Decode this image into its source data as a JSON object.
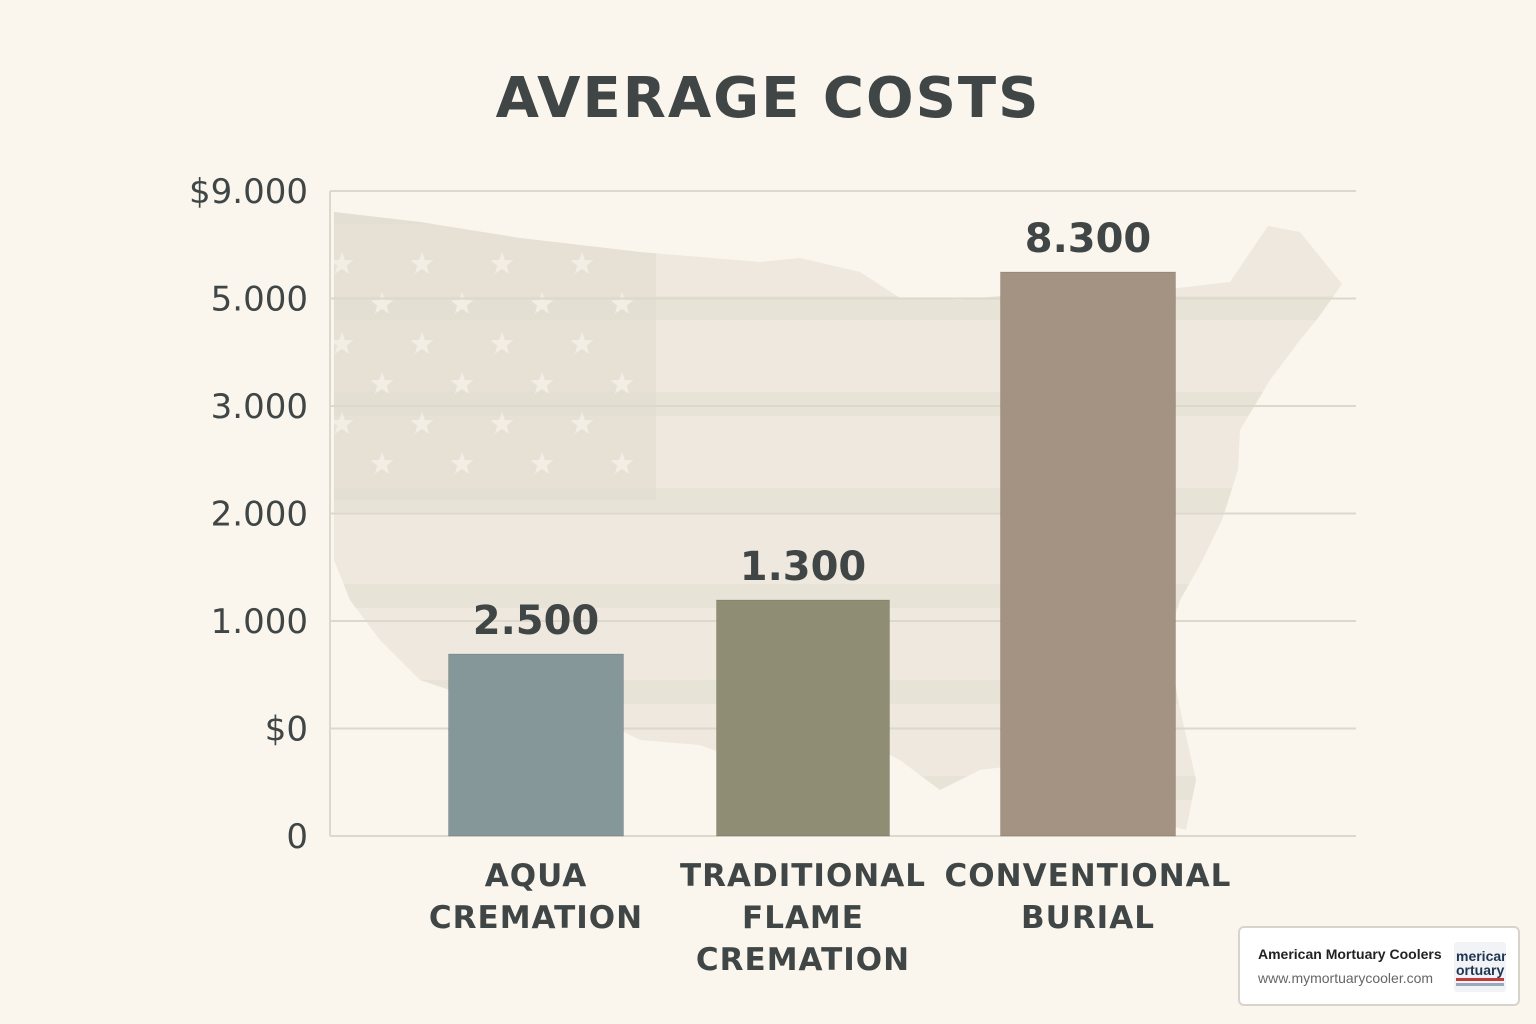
{
  "chart_data": {
    "type": "bar",
    "title": "AVERAGE COSTS",
    "categories": [
      [
        "AQUA",
        "CREMATION"
      ],
      [
        "TRADITIONAL",
        "FLAME",
        "CREMATION"
      ],
      [
        "CONVENTIONAL",
        "BURIAL"
      ]
    ],
    "values": [
      2500,
      1300,
      8300
    ],
    "value_labels": [
      "2.500",
      "1.300",
      "8.300"
    ],
    "bar_colors": [
      "#86979a",
      "#8f8e74",
      "#a49283"
    ],
    "y_tick_labels": [
      "$9.000",
      "5.000",
      "3.000",
      "2.000",
      "1.000",
      "$0",
      "0"
    ],
    "grid": true,
    "background_decoration": "faded-us-flag-map"
  },
  "credit": {
    "name": "American Mortuary Coolers",
    "url": "www.mymortuarycooler.com",
    "logo_lines": [
      "merican",
      "ortuary"
    ]
  }
}
